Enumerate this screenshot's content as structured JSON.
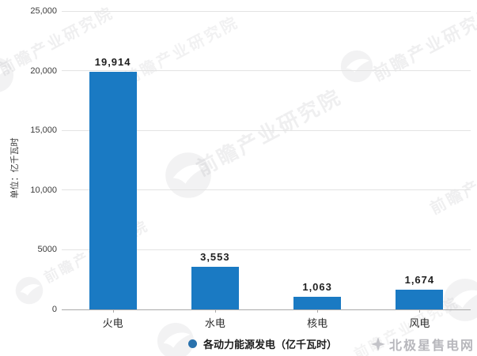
{
  "chart_data": {
    "type": "bar",
    "categories": [
      "火电",
      "水电",
      "核电",
      "风电"
    ],
    "values": [
      19914,
      3553,
      1063,
      1674
    ],
    "value_labels": [
      "19,914",
      "3,553",
      "1,063",
      "1,674"
    ],
    "title": "",
    "xlabel": "",
    "ylabel": "单位：亿千瓦时",
    "ylim": [
      0,
      25000
    ],
    "ytick_interval": 5000,
    "ytick_labels": [
      "0",
      "5000",
      "10,000",
      "15,000",
      "20,000",
      "25,000"
    ],
    "grid": true,
    "legend_position": "bottom",
    "legend": {
      "marker": "circle",
      "label": "各动力能源发电（亿千瓦时）"
    }
  },
  "colors": {
    "bar": "#1a7ac3",
    "legend_dot": "#2a72ad",
    "grid": "#e3e3e3",
    "axis": "#a9a9a9",
    "tick_text": "#3c3c3c",
    "value_text": "#1f1f1f",
    "category_text": "#2b2b2b",
    "watermark": "#7d7d84",
    "brand_text": "#b7b7bc"
  },
  "watermark": {
    "text": "前瞻产业研究院"
  },
  "brand": {
    "text": "北极星售电网",
    "icon": "polaris-star-icon"
  }
}
